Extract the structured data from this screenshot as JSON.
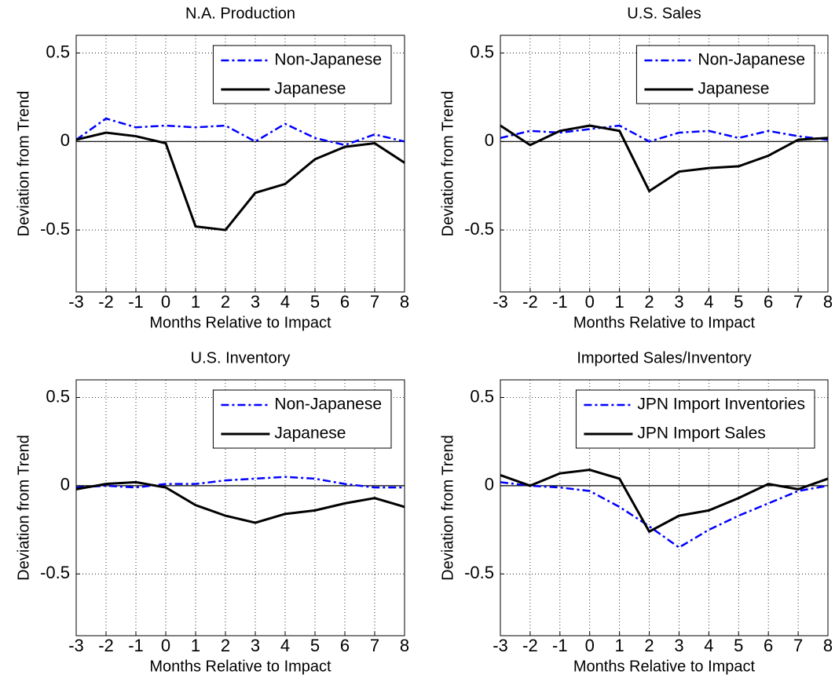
{
  "chart_data": [
    {
      "type": "line",
      "title": "N.A. Production",
      "xlabel": "Months Relative to Impact",
      "ylabel": "Deviation from Trend",
      "x": [
        -3,
        -2,
        -1,
        0,
        1,
        2,
        3,
        4,
        5,
        6,
        7,
        8
      ],
      "series": [
        {
          "name": "Non-Japanese",
          "color": "#0000ff",
          "style": "dash-dot",
          "values": [
            0.01,
            0.13,
            0.08,
            0.09,
            0.08,
            0.09,
            0.0,
            0.1,
            0.02,
            -0.02,
            0.04,
            0.0
          ]
        },
        {
          "name": "Japanese",
          "color": "#000000",
          "style": "solid",
          "values": [
            0.01,
            0.05,
            0.03,
            -0.01,
            -0.48,
            -0.5,
            -0.29,
            -0.24,
            -0.1,
            -0.03,
            -0.01,
            -0.12
          ]
        }
      ],
      "xlim": [
        -3,
        8
      ],
      "xticks": [
        -3,
        -2,
        -1,
        0,
        1,
        2,
        3,
        4,
        5,
        6,
        7,
        8
      ],
      "ylim": [
        -0.85,
        0.6
      ],
      "yticks": [
        -0.5,
        0,
        0.5
      ],
      "grid": true,
      "zero_line": true,
      "legend": "upper-right"
    },
    {
      "type": "line",
      "title": "U.S. Sales",
      "xlabel": "Months Relative to Impact",
      "ylabel": "Deviation from Trend",
      "x": [
        -3,
        -2,
        -1,
        0,
        1,
        2,
        3,
        4,
        5,
        6,
        7,
        8
      ],
      "series": [
        {
          "name": "Non-Japanese",
          "color": "#0000ff",
          "style": "dash-dot",
          "values": [
            0.02,
            0.06,
            0.05,
            0.07,
            0.09,
            0.0,
            0.05,
            0.06,
            0.02,
            0.06,
            0.03,
            0.01
          ]
        },
        {
          "name": "Japanese",
          "color": "#000000",
          "style": "solid",
          "values": [
            0.09,
            -0.02,
            0.06,
            0.09,
            0.06,
            -0.28,
            -0.17,
            -0.15,
            -0.14,
            -0.08,
            0.01,
            0.02
          ]
        }
      ],
      "xlim": [
        -3,
        8
      ],
      "xticks": [
        -3,
        -2,
        -1,
        0,
        1,
        2,
        3,
        4,
        5,
        6,
        7,
        8
      ],
      "ylim": [
        -0.85,
        0.6
      ],
      "yticks": [
        -0.5,
        0,
        0.5
      ],
      "grid": true,
      "zero_line": true,
      "legend": "upper-right"
    },
    {
      "type": "line",
      "title": "U.S. Inventory",
      "xlabel": "Months Relative to Impact",
      "ylabel": "Deviation from Trend",
      "x": [
        -3,
        -2,
        -1,
        0,
        1,
        2,
        3,
        4,
        5,
        6,
        7,
        8
      ],
      "series": [
        {
          "name": "Non-Japanese",
          "color": "#0000ff",
          "style": "dash-dot",
          "values": [
            -0.01,
            0.0,
            -0.01,
            0.01,
            0.01,
            0.03,
            0.04,
            0.05,
            0.04,
            0.01,
            -0.01,
            -0.01
          ]
        },
        {
          "name": "Japanese",
          "color": "#000000",
          "style": "solid",
          "values": [
            -0.02,
            0.01,
            0.02,
            -0.01,
            -0.11,
            -0.17,
            -0.21,
            -0.16,
            -0.14,
            -0.1,
            -0.07,
            -0.12
          ]
        }
      ],
      "xlim": [
        -3,
        8
      ],
      "xticks": [
        -3,
        -2,
        -1,
        0,
        1,
        2,
        3,
        4,
        5,
        6,
        7,
        8
      ],
      "ylim": [
        -0.85,
        0.6
      ],
      "yticks": [
        -0.5,
        0,
        0.5
      ],
      "grid": true,
      "zero_line": true,
      "legend": "upper-right"
    },
    {
      "type": "line",
      "title": "Imported Sales/Inventory",
      "xlabel": "Months Relative to Impact",
      "ylabel": "Deviation from Trend",
      "x": [
        -3,
        -2,
        -1,
        0,
        1,
        2,
        3,
        4,
        5,
        6,
        7,
        8
      ],
      "series": [
        {
          "name": "JPN Import Inventories",
          "color": "#0000ff",
          "style": "dash-dot",
          "values": [
            0.02,
            0.0,
            -0.01,
            -0.03,
            -0.12,
            -0.23,
            -0.35,
            -0.25,
            -0.17,
            -0.1,
            -0.03,
            0.0
          ]
        },
        {
          "name": "JPN Import Sales",
          "color": "#000000",
          "style": "solid",
          "values": [
            0.06,
            0.0,
            0.07,
            0.09,
            0.04,
            -0.26,
            -0.17,
            -0.14,
            -0.07,
            0.01,
            -0.02,
            0.04
          ]
        }
      ],
      "xlim": [
        -3,
        8
      ],
      "xticks": [
        -3,
        -2,
        -1,
        0,
        1,
        2,
        3,
        4,
        5,
        6,
        7,
        8
      ],
      "ylim": [
        -0.85,
        0.6
      ],
      "yticks": [
        -0.5,
        0,
        0.5
      ],
      "grid": true,
      "zero_line": true,
      "legend": "upper-right"
    }
  ]
}
